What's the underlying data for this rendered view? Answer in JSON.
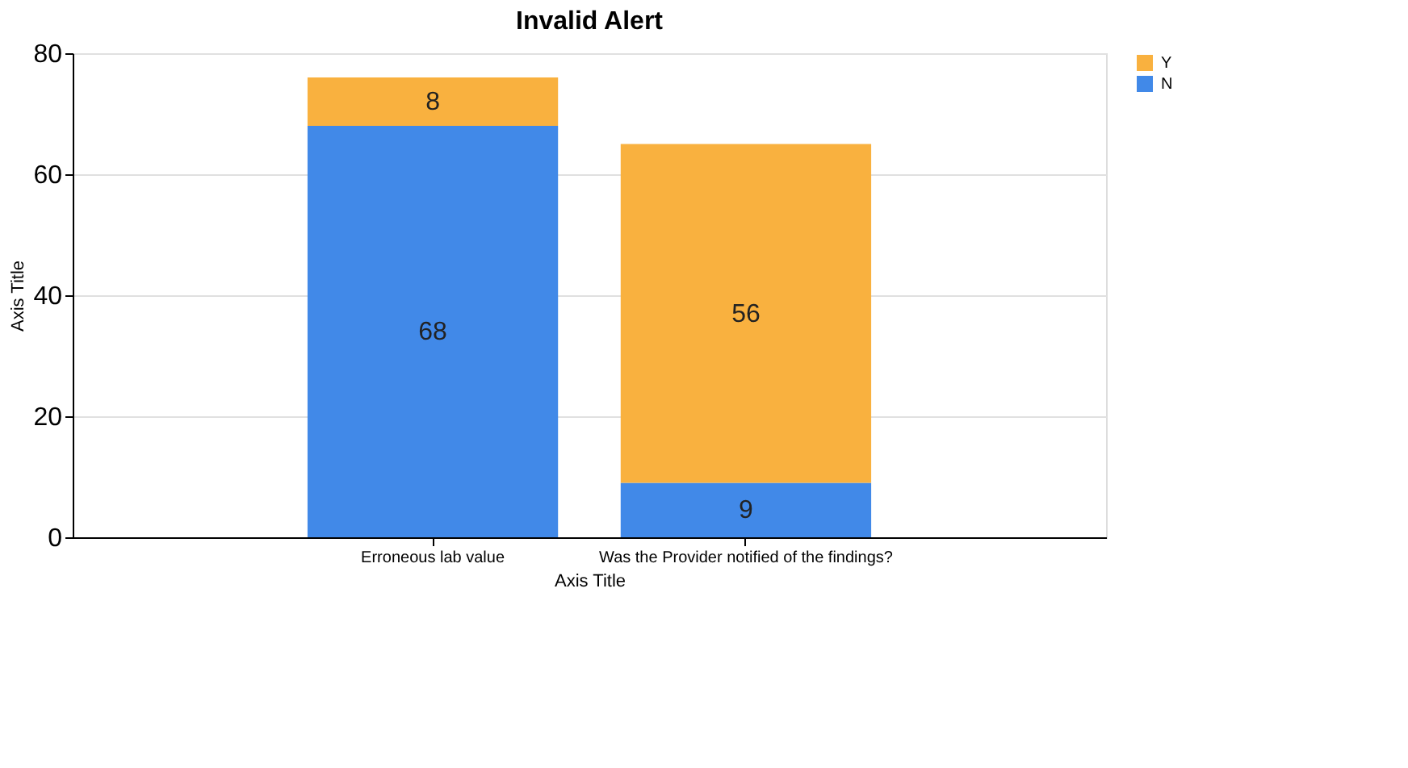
{
  "chart_data": {
    "type": "bar",
    "title": "Invalid Alert",
    "xlabel": "Axis Title",
    "ylabel": "Axis Title",
    "categories": [
      "Erroneous lab value",
      "Was the Provider notified of the findings?"
    ],
    "stacked": true,
    "series": [
      {
        "name": "N",
        "color": "#4189e8",
        "values": [
          68,
          9
        ]
      },
      {
        "name": "Y",
        "color": "#f9b13f",
        "values": [
          8,
          56
        ]
      }
    ],
    "ylim": [
      0,
      80
    ],
    "yticks": [
      0,
      20,
      40,
      60,
      80
    ],
    "grid": "y",
    "legend": "top right",
    "data_labels": true
  }
}
